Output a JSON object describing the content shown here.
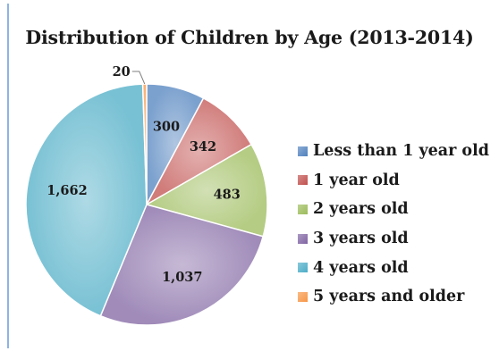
{
  "chart_data": {
    "type": "pie",
    "title": "Distribution of Children by Age (2013-2014)",
    "slices": [
      {
        "label": "Less than 1 year old",
        "value": 300,
        "value_label": "300",
        "color": "#4f81bd"
      },
      {
        "label": "1 year old",
        "value": 342,
        "value_label": "342",
        "color": "#c0504d"
      },
      {
        "label": "2 years old",
        "value": 483,
        "value_label": "483",
        "color": "#9bbb59"
      },
      {
        "label": "3 years old",
        "value": 1037,
        "value_label": "1,037",
        "color": "#8064a2"
      },
      {
        "label": "4 years old",
        "value": 1662,
        "value_label": "1,662",
        "color": "#4bacc6"
      },
      {
        "label": "5 years and older",
        "value": 20,
        "value_label": "20",
        "color": "#f79646"
      }
    ],
    "legend_position": "right"
  }
}
